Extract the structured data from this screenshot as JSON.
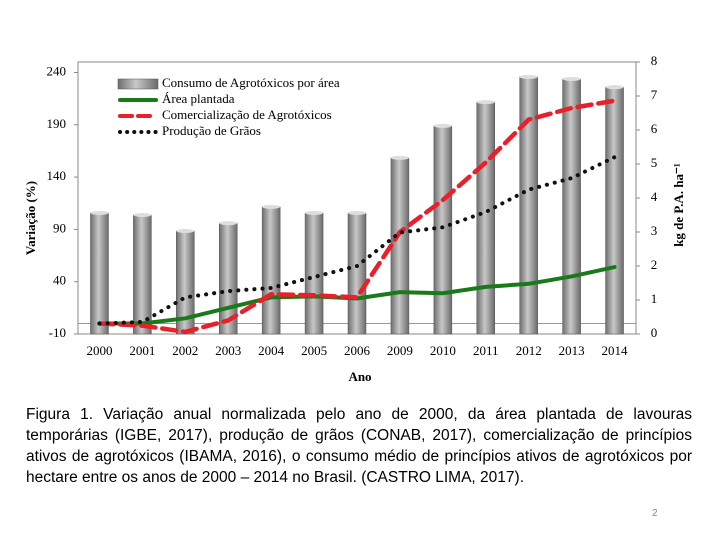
{
  "chart_data": {
    "type": "bar-line",
    "xlabel": "Ano",
    "ylabel": "Variação (%)",
    "y2label": "kg de P.A. ha⁻¹",
    "categories": [
      "2000",
      "2001",
      "2002",
      "2003",
      "2004",
      "2005",
      "2006",
      "2009",
      "2010",
      "2011",
      "2012",
      "2013",
      "2014"
    ],
    "ylim": [
      -10,
      250
    ],
    "yticks": [
      -10,
      40,
      90,
      140,
      190,
      240
    ],
    "y2lim": [
      0,
      8
    ],
    "y2ticks": [
      0,
      1,
      2,
      3,
      4,
      5,
      6,
      7,
      8
    ],
    "series": [
      {
        "name": "Consumo de Agrotóxicos por área",
        "type": "bar",
        "axis": "y2",
        "color": "#8c8c8c",
        "values": [
          3.56,
          3.5,
          3.03,
          3.26,
          3.74,
          3.56,
          3.56,
          5.18,
          6.12,
          6.82,
          7.56,
          7.5,
          7.26
        ]
      },
      {
        "name": "Área plantada",
        "type": "line",
        "style": "solid",
        "color": "#1a7a1a",
        "values": [
          0,
          0,
          5,
          15,
          25,
          26,
          24,
          30,
          29,
          35,
          38,
          45,
          54
        ]
      },
      {
        "name": "Comercialização de Agrotóxicos",
        "type": "line",
        "style": "dashed",
        "color": "#e8202a",
        "values": [
          0,
          -2,
          -8,
          3,
          28,
          27,
          25,
          87.5,
          118,
          154,
          195,
          206,
          213
        ]
      },
      {
        "name": "Produção de Grãos",
        "type": "line",
        "style": "dotted",
        "color": "#111111",
        "values": [
          0,
          1.5,
          25,
          31,
          34,
          44.5,
          55,
          87,
          92,
          106.6,
          128,
          139,
          159
        ]
      }
    ],
    "caption": "Figura 1. Variação anual normalizada pelo ano de 2000, da área plantada de lavouras temporárias (IGBE, 2017), produção de grãos (CONAB, 2017), comercialização de princípios ativos de agrotóxicos (IBAMA, 2016), o consumo médio de princípios ativos de agrotóxicos por hectare entre os anos de 2000 – 2014 no Brasil. (CASTRO LIMA, 2017).",
    "page_number": "2"
  }
}
